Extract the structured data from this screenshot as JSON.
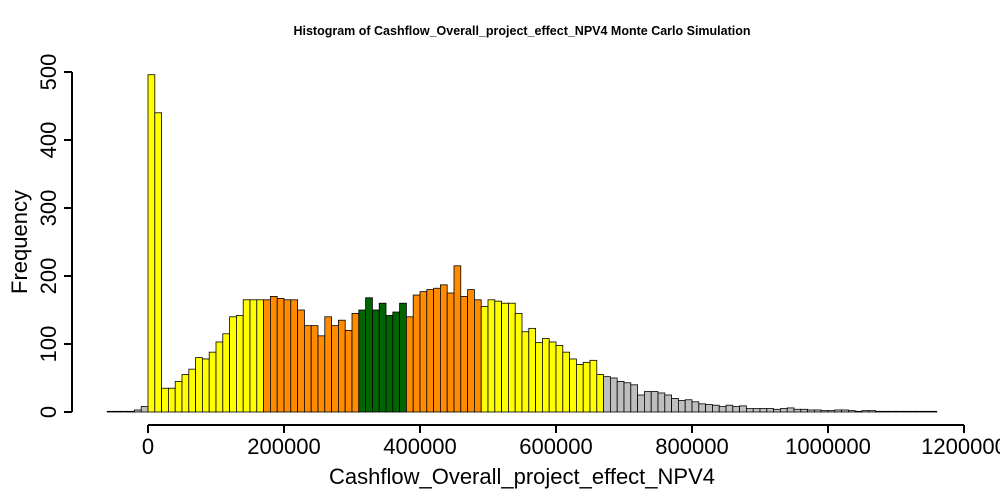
{
  "chart_data": {
    "type": "bar",
    "title": "Histogram of  Cashflow_Overall_project_effect_NPV4  Monte Carlo Simulation",
    "xlabel": "Cashflow_Overall_project_effect_NPV4",
    "ylabel": "Frequency",
    "xlim": [
      -60000,
      1200000
    ],
    "ylim": [
      0,
      500
    ],
    "xticks": [
      0,
      200000,
      400000,
      600000,
      800000,
      1000000,
      1200000
    ],
    "xtick_labels": [
      "0",
      "200000",
      "400000",
      "600000",
      "800000",
      "1000000",
      "1200000"
    ],
    "yticks": [
      0,
      100,
      200,
      300,
      400,
      500
    ],
    "ytick_labels": [
      "0",
      "100",
      "200",
      "300",
      "400",
      "500"
    ],
    "bin_width": 10000,
    "bin_start": -60000,
    "frequencies": [
      1,
      1,
      1,
      1,
      3,
      8,
      496,
      440,
      35,
      35,
      45,
      55,
      63,
      80,
      78,
      88,
      103,
      115,
      140,
      142,
      165,
      165,
      165,
      165,
      170,
      167,
      165,
      165,
      150,
      127,
      127,
      112,
      140,
      127,
      135,
      120,
      145,
      150,
      168,
      150,
      160,
      142,
      147,
      160,
      140,
      172,
      177,
      180,
      182,
      187,
      175,
      215,
      170,
      180,
      165,
      155,
      165,
      163,
      160,
      160,
      145,
      118,
      123,
      102,
      108,
      103,
      98,
      88,
      78,
      70,
      73,
      76,
      55,
      52,
      50,
      45,
      43,
      40,
      25,
      30,
      30,
      28,
      25,
      20,
      17,
      18,
      15,
      12,
      11,
      10,
      8,
      10,
      8,
      9,
      5,
      5,
      5,
      5,
      4,
      5,
      6,
      4,
      4,
      3,
      3,
      2,
      2,
      3,
      3,
      2,
      1,
      2,
      2,
      1,
      1,
      1,
      1,
      1,
      1,
      1,
      1,
      1
    ],
    "color_regions": [
      {
        "from": -60000,
        "to": 0,
        "color": "#BEBEBE"
      },
      {
        "from": 0,
        "to": 170000,
        "color": "#FFFF00"
      },
      {
        "from": 170000,
        "to": 310000,
        "color": "#FF8C00"
      },
      {
        "from": 310000,
        "to": 380000,
        "color": "#006400"
      },
      {
        "from": 380000,
        "to": 490000,
        "color": "#FF8C00"
      },
      {
        "from": 490000,
        "to": 670000,
        "color": "#FFFF00"
      },
      {
        "from": 670000,
        "to": 1160000,
        "color": "#BEBEBE"
      }
    ],
    "grid": false,
    "legend": "none"
  }
}
